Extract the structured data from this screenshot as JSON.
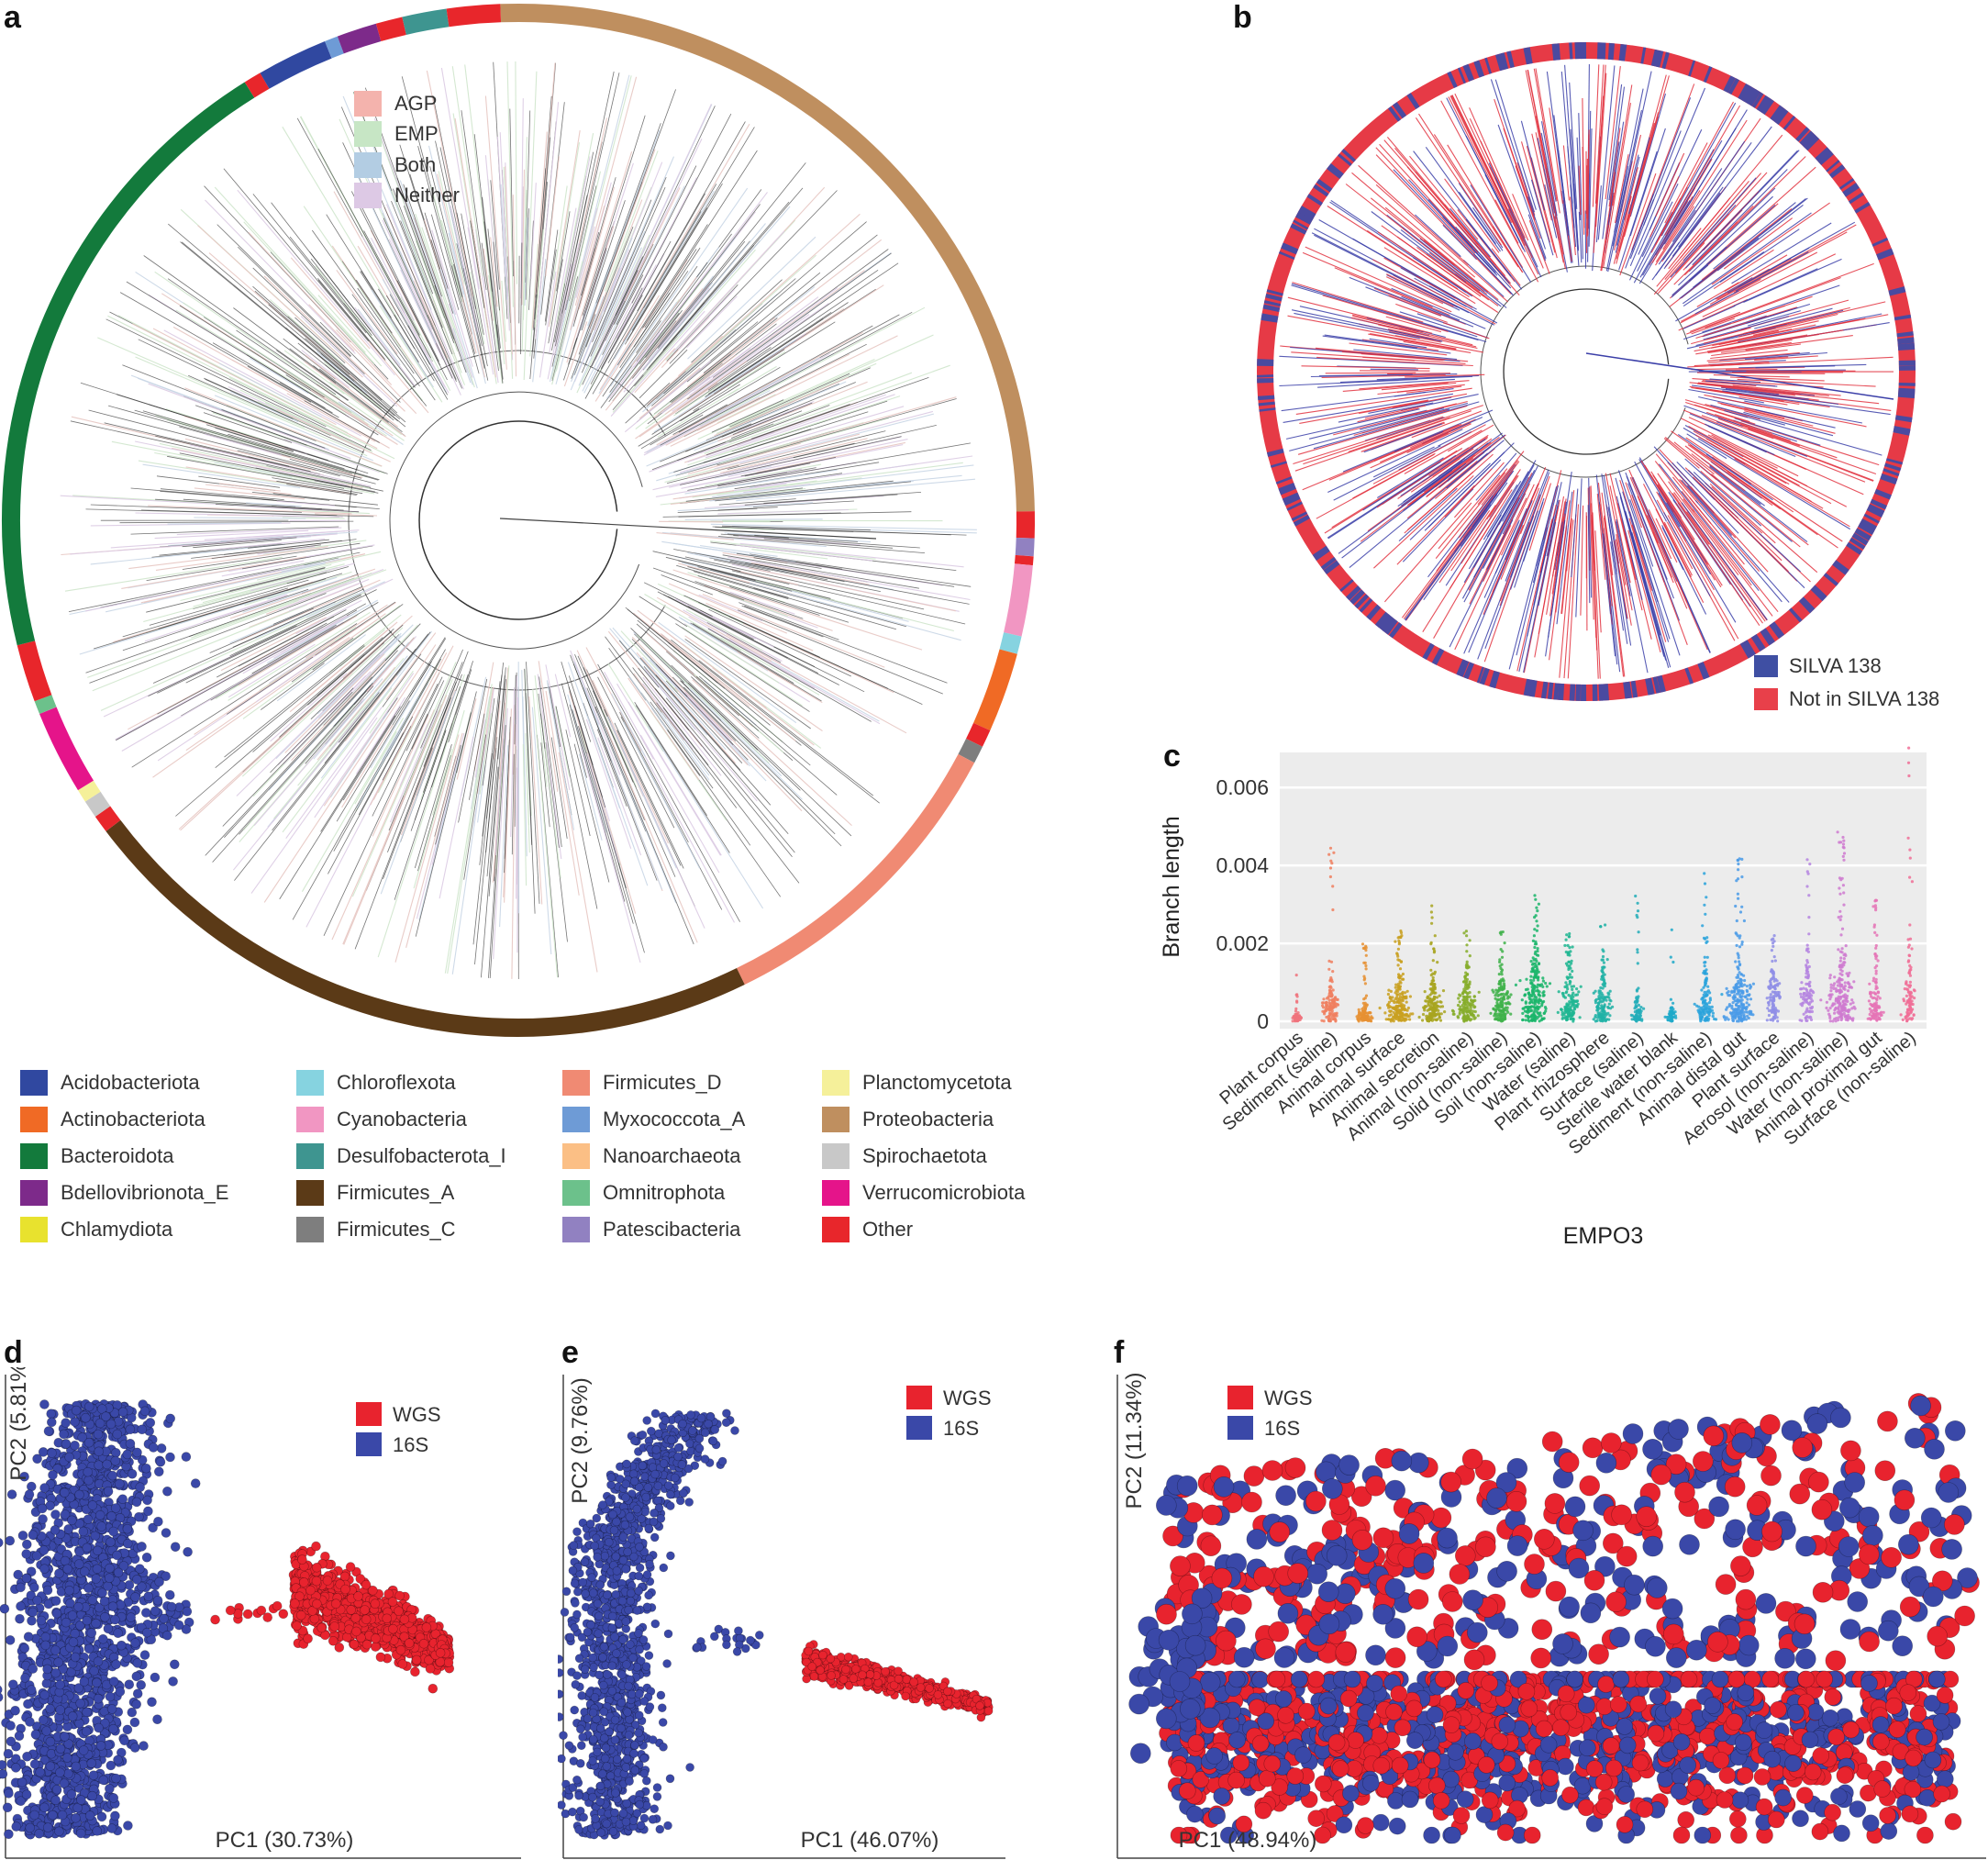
{
  "panels": {
    "a": "a",
    "b": "b",
    "c": "c",
    "d": "d",
    "e": "e",
    "f": "f"
  },
  "panel_a": {
    "overlay_legend": [
      {
        "label": "AGP",
        "color": "#f4b3ad"
      },
      {
        "label": "EMP",
        "color": "#c7e6c5"
      },
      {
        "label": "Both",
        "color": "#b3cde3"
      },
      {
        "label": "Neither",
        "color": "#ddc9e5"
      }
    ],
    "ring_colors": {
      "Proteobacteria": "#bf8f5f",
      "Bacteroidota": "#137a3c",
      "Firmicutes_A": "#5b3a17",
      "Firmicutes_D": "#f08a73",
      "Acidobacteriota": "#3a4ea6",
      "Other": "#e8262b"
    },
    "phylum_legend": [
      {
        "label": "Acidobacteriota",
        "color": "#3048a0"
      },
      {
        "label": "Actinobacteriota",
        "color": "#f06a25"
      },
      {
        "label": "Bacteroidota",
        "color": "#137a3c"
      },
      {
        "label": "Bdellovibrionota_E",
        "color": "#7d2a8a"
      },
      {
        "label": "Chlamydiota",
        "color": "#e8e22e"
      },
      {
        "label": "Chloroflexota",
        "color": "#86d3e0"
      },
      {
        "label": "Cyanobacteria",
        "color": "#f196c2"
      },
      {
        "label": "Desulfobacterota_I",
        "color": "#3e9590"
      },
      {
        "label": "Firmicutes_A",
        "color": "#5b3a17"
      },
      {
        "label": "Firmicutes_C",
        "color": "#7e7e7e"
      },
      {
        "label": "Firmicutes_D",
        "color": "#f08a73"
      },
      {
        "label": "Myxococcota_A",
        "color": "#6e9bd6"
      },
      {
        "label": "Nanoarchaeota",
        "color": "#fbbf85"
      },
      {
        "label": "Omnitrophota",
        "color": "#6cc18b"
      },
      {
        "label": "Patescibacteria",
        "color": "#9181c1"
      },
      {
        "label": "Planctomycetota",
        "color": "#f5f09a"
      },
      {
        "label": "Proteobacteria",
        "color": "#bf8f5f"
      },
      {
        "label": "Spirochaetota",
        "color": "#c8c8c8"
      },
      {
        "label": "Verrucomicrobiota",
        "color": "#e5148a"
      },
      {
        "label": "Other",
        "color": "#e8262b"
      }
    ]
  },
  "panel_b": {
    "legend": [
      {
        "label": "SILVA 138",
        "color": "#3f4fa3"
      },
      {
        "label": "Not in SILVA 138",
        "color": "#e8404a"
      }
    ]
  },
  "chart_data": [
    {
      "type": "scatter",
      "panel": "c",
      "ylabel": "Branch length",
      "xlabel": "EMPO3",
      "y_ticks": [
        "0",
        "0.002",
        "0.004",
        "0.006"
      ],
      "ylim": [
        0,
        0.0069
      ],
      "grid": true,
      "categories": [
        "Plant corpus",
        "Sediment (saline)",
        "Animal corpus",
        "Animal surface",
        "Animal secretion",
        "Animal (non-saline)",
        "Solid (non-saline)",
        "Soil (non-saline)",
        "Water (saline)",
        "Plant rhizosphere",
        "Surface (saline)",
        "Sterile water blank",
        "Sediment (non-saline)",
        "Animal distal gut",
        "Plant surface",
        "Aerosol (non-saline)",
        "Water (non-saline)",
        "Animal proximal gut",
        "Surface (non-saline)"
      ],
      "colors": [
        "#f0737c",
        "#f07f5f",
        "#e69032",
        "#c9a020",
        "#a8a520",
        "#86ad2a",
        "#3fb14a",
        "#1ab56a",
        "#1eb692",
        "#20b2a6",
        "#22adb8",
        "#1fa9c9",
        "#2aa3dc",
        "#4a9be8",
        "#8f8ee6",
        "#b585e0",
        "#cf7ad0",
        "#e574b6",
        "#f06f96"
      ],
      "max_values": [
        0.0013,
        0.0045,
        0.002,
        0.0025,
        0.003,
        0.0025,
        0.0025,
        0.0038,
        0.0025,
        0.0025,
        0.0033,
        0.0025,
        0.0038,
        0.0043,
        0.0022,
        0.0042,
        0.0049,
        0.0036,
        0.0071
      ],
      "median_values": [
        0.0001,
        0.0004,
        0.0002,
        0.0005,
        0.0005,
        0.0005,
        0.0005,
        0.0007,
        0.0006,
        0.0005,
        0.0003,
        0.0002,
        0.0005,
        0.0006,
        0.0007,
        0.0007,
        0.0008,
        0.0006,
        0.0008
      ],
      "density": [
        0.15,
        0.5,
        0.4,
        0.9,
        0.75,
        0.7,
        0.65,
        1.0,
        0.6,
        0.55,
        0.2,
        0.1,
        0.5,
        1.0,
        0.4,
        0.35,
        1.0,
        0.4,
        0.35
      ]
    },
    {
      "type": "scatter",
      "panel": "d",
      "xlabel": "PC1 (30.73%)",
      "ylabel": "PC2 (5.81%)",
      "series": [
        {
          "name": "WGS",
          "color": "#e8232e"
        },
        {
          "name": "16S",
          "color": "#3a48a8"
        }
      ]
    },
    {
      "type": "scatter",
      "panel": "e",
      "xlabel": "PC1 (46.07%)",
      "ylabel": "PC2 (9.76%)",
      "series": [
        {
          "name": "WGS",
          "color": "#e8232e"
        },
        {
          "name": "16S",
          "color": "#3a48a8"
        }
      ]
    },
    {
      "type": "scatter",
      "panel": "f",
      "xlabel": "PC1 (48.94%)",
      "ylabel": "PC2 (11.34%)",
      "series": [
        {
          "name": "WGS",
          "color": "#e8232e"
        },
        {
          "name": "16S",
          "color": "#3a48a8"
        }
      ]
    }
  ]
}
